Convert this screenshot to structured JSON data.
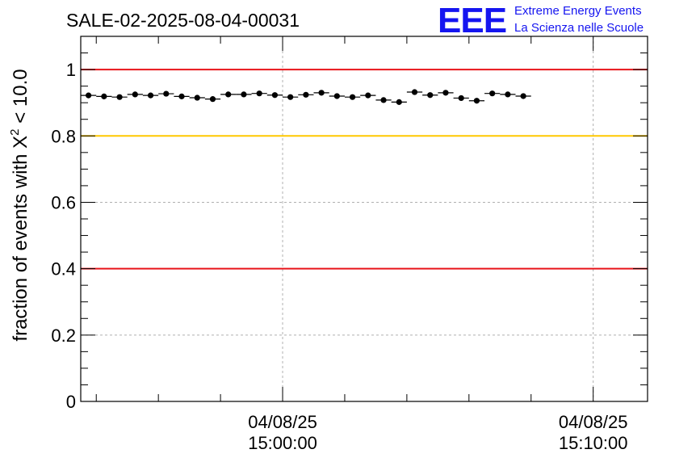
{
  "chart_data": {
    "type": "scatter",
    "title": "SALE-02-2025-08-04-00031",
    "logo": {
      "mark": "EEE",
      "line1": "Extreme Energy Events",
      "line2": "La Scienza nelle Scuole"
    },
    "ylabel": {
      "prefix": "fraction of events with ",
      "symbol": "X",
      "superscript": "2",
      "suffix": " < 10.0"
    },
    "ylim": [
      0,
      1.1
    ],
    "yticks": [
      {
        "value": 0,
        "label": "0"
      },
      {
        "value": 0.2,
        "label": "0.2"
      },
      {
        "value": 0.4,
        "label": "0.4"
      },
      {
        "value": 0.6,
        "label": "0.6"
      },
      {
        "value": 0.8,
        "label": "0.8"
      },
      {
        "value": 1,
        "label": "1"
      }
    ],
    "xlim_minutes": [
      0,
      18.25
    ],
    "xticks": [
      {
        "value": 6.5,
        "date": "04/08/25",
        "time": "15:00:00"
      },
      {
        "value": 16.5,
        "date": "04/08/25",
        "time": "15:10:00"
      }
    ],
    "reference_lines": [
      {
        "value": 1.0,
        "color": "#e8141a"
      },
      {
        "value": 0.8,
        "color": "#ffc800"
      },
      {
        "value": 0.4,
        "color": "#e8141a"
      }
    ],
    "grid": true,
    "series": [
      {
        "x": [
          0.0,
          0.5,
          1.0,
          1.5,
          2.0,
          2.5,
          3.0,
          3.5,
          4.0,
          4.5,
          5.0,
          5.5,
          6.0,
          6.5,
          7.0,
          7.5,
          8.0,
          8.5,
          9.0,
          9.5,
          10.0,
          10.5,
          11.0,
          11.5,
          12.0,
          12.5,
          13.0,
          13.5,
          14.0
        ],
        "y": [
          0.922,
          0.919,
          0.917,
          0.925,
          0.922,
          0.927,
          0.919,
          0.915,
          0.911,
          0.925,
          0.925,
          0.928,
          0.923,
          0.917,
          0.924,
          0.93,
          0.92,
          0.917,
          0.922,
          0.908,
          0.902,
          0.932,
          0.923,
          0.93,
          0.914,
          0.906,
          0.928,
          0.925,
          0.92
        ],
        "color": "#000000"
      }
    ]
  }
}
